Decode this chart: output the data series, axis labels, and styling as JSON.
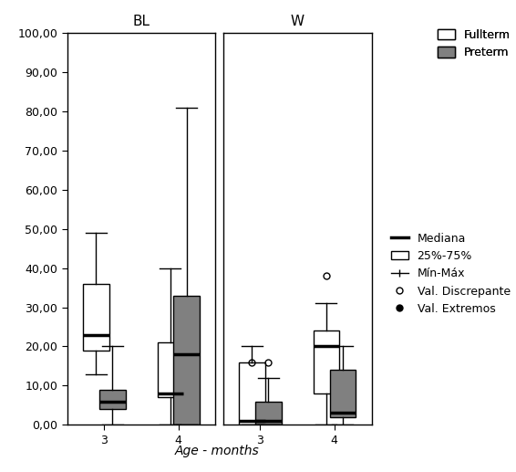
{
  "title_BL": "BL",
  "title_W": "W",
  "xlabel": "Age - months",
  "ylim": [
    0,
    100
  ],
  "yticks": [
    0,
    10,
    20,
    30,
    40,
    50,
    60,
    70,
    80,
    90,
    100
  ],
  "ytick_labels": [
    "0,00",
    "10,00",
    "20,00",
    "30,00",
    "40,00",
    "50,00",
    "60,00",
    "70,00",
    "80,00",
    "90,00",
    "100,00"
  ],
  "groups": [
    "3",
    "4"
  ],
  "conditions": [
    "BL",
    "W"
  ],
  "boxes": {
    "BL_3_full": {
      "q1": 19,
      "median": 23,
      "q3": 36,
      "whislo": 13,
      "whishi": 49,
      "fliers": []
    },
    "BL_3_pre": {
      "q1": 4,
      "median": 6,
      "q3": 9,
      "whislo": 0,
      "whishi": 20,
      "fliers": []
    },
    "BL_4_full": {
      "q1": 7,
      "median": 8,
      "q3": 21,
      "whislo": 0,
      "whishi": 40,
      "fliers": []
    },
    "BL_4_pre": {
      "q1": 0,
      "median": 18,
      "q3": 33,
      "whislo": 0,
      "whishi": 81,
      "fliers": []
    },
    "W_3_full": {
      "q1": 0,
      "median": 1,
      "q3": 16,
      "whislo": 0,
      "whishi": 20,
      "fliers": [
        16
      ]
    },
    "W_3_pre": {
      "q1": 0,
      "median": 1,
      "q3": 6,
      "whislo": 0,
      "whishi": 12,
      "fliers": [
        16
      ]
    },
    "W_4_full": {
      "q1": 8,
      "median": 20,
      "q3": 24,
      "whislo": 0,
      "whishi": 31,
      "fliers": [
        38
      ]
    },
    "W_4_pre": {
      "q1": 2,
      "median": 3,
      "q3": 14,
      "whislo": 0,
      "whishi": 20,
      "fliers": []
    }
  },
  "fullterm_color": "#ffffff",
  "preterm_color": "#808080",
  "box_width": 0.35,
  "legend_entries": [
    "Fullterm",
    "Preterm"
  ],
  "legend2_entries": [
    "Mediana",
    "25%-75%",
    "Mín-Máx",
    "Val. Discrepante",
    "Val. Extremos"
  ],
  "background_color": "#ffffff",
  "font_color": "#000000"
}
